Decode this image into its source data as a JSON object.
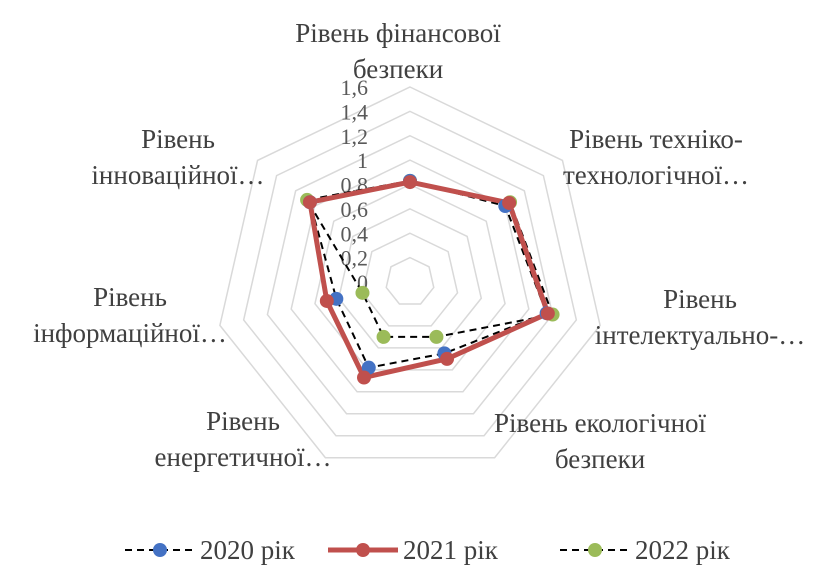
{
  "chart_data": {
    "type": "radar",
    "categories": [
      [
        "Рівень фінансової",
        "безпеки"
      ],
      [
        "Рівень техніко-",
        "технологічної…"
      ],
      [
        "Рівень",
        "інтелектуально-…"
      ],
      [
        "Рівень екологічної",
        "безпеки"
      ],
      [
        "Рівень",
        "енергетичної…"
      ],
      [
        "Рівень",
        "інформаційної…"
      ],
      [
        "Рівень",
        "інноваційної…"
      ]
    ],
    "tick_labels": [
      "0",
      "0,2",
      "0,4",
      "0,6",
      "0,8",
      "1",
      "1,2",
      "1,4",
      "1,6"
    ],
    "rlim": [
      0,
      1.6
    ],
    "grid": true,
    "legend_position": "bottom",
    "series": [
      {
        "name": "2020 рік",
        "color": "#4472C4",
        "line": "dash-black",
        "values": [
          0.83,
          1.0,
          1.15,
          0.65,
          0.78,
          0.62,
          1.05
        ]
      },
      {
        "name": "2021 рік",
        "color": "#C0504D",
        "line": "solid-red",
        "values": [
          0.82,
          1.04,
          1.16,
          0.7,
          0.87,
          0.7,
          1.05
        ]
      },
      {
        "name": "2022 рік",
        "color": "#9BBB59",
        "line": "dash-black",
        "values": [
          0.83,
          1.05,
          1.2,
          0.5,
          0.5,
          0.4,
          1.08
        ]
      }
    ]
  }
}
